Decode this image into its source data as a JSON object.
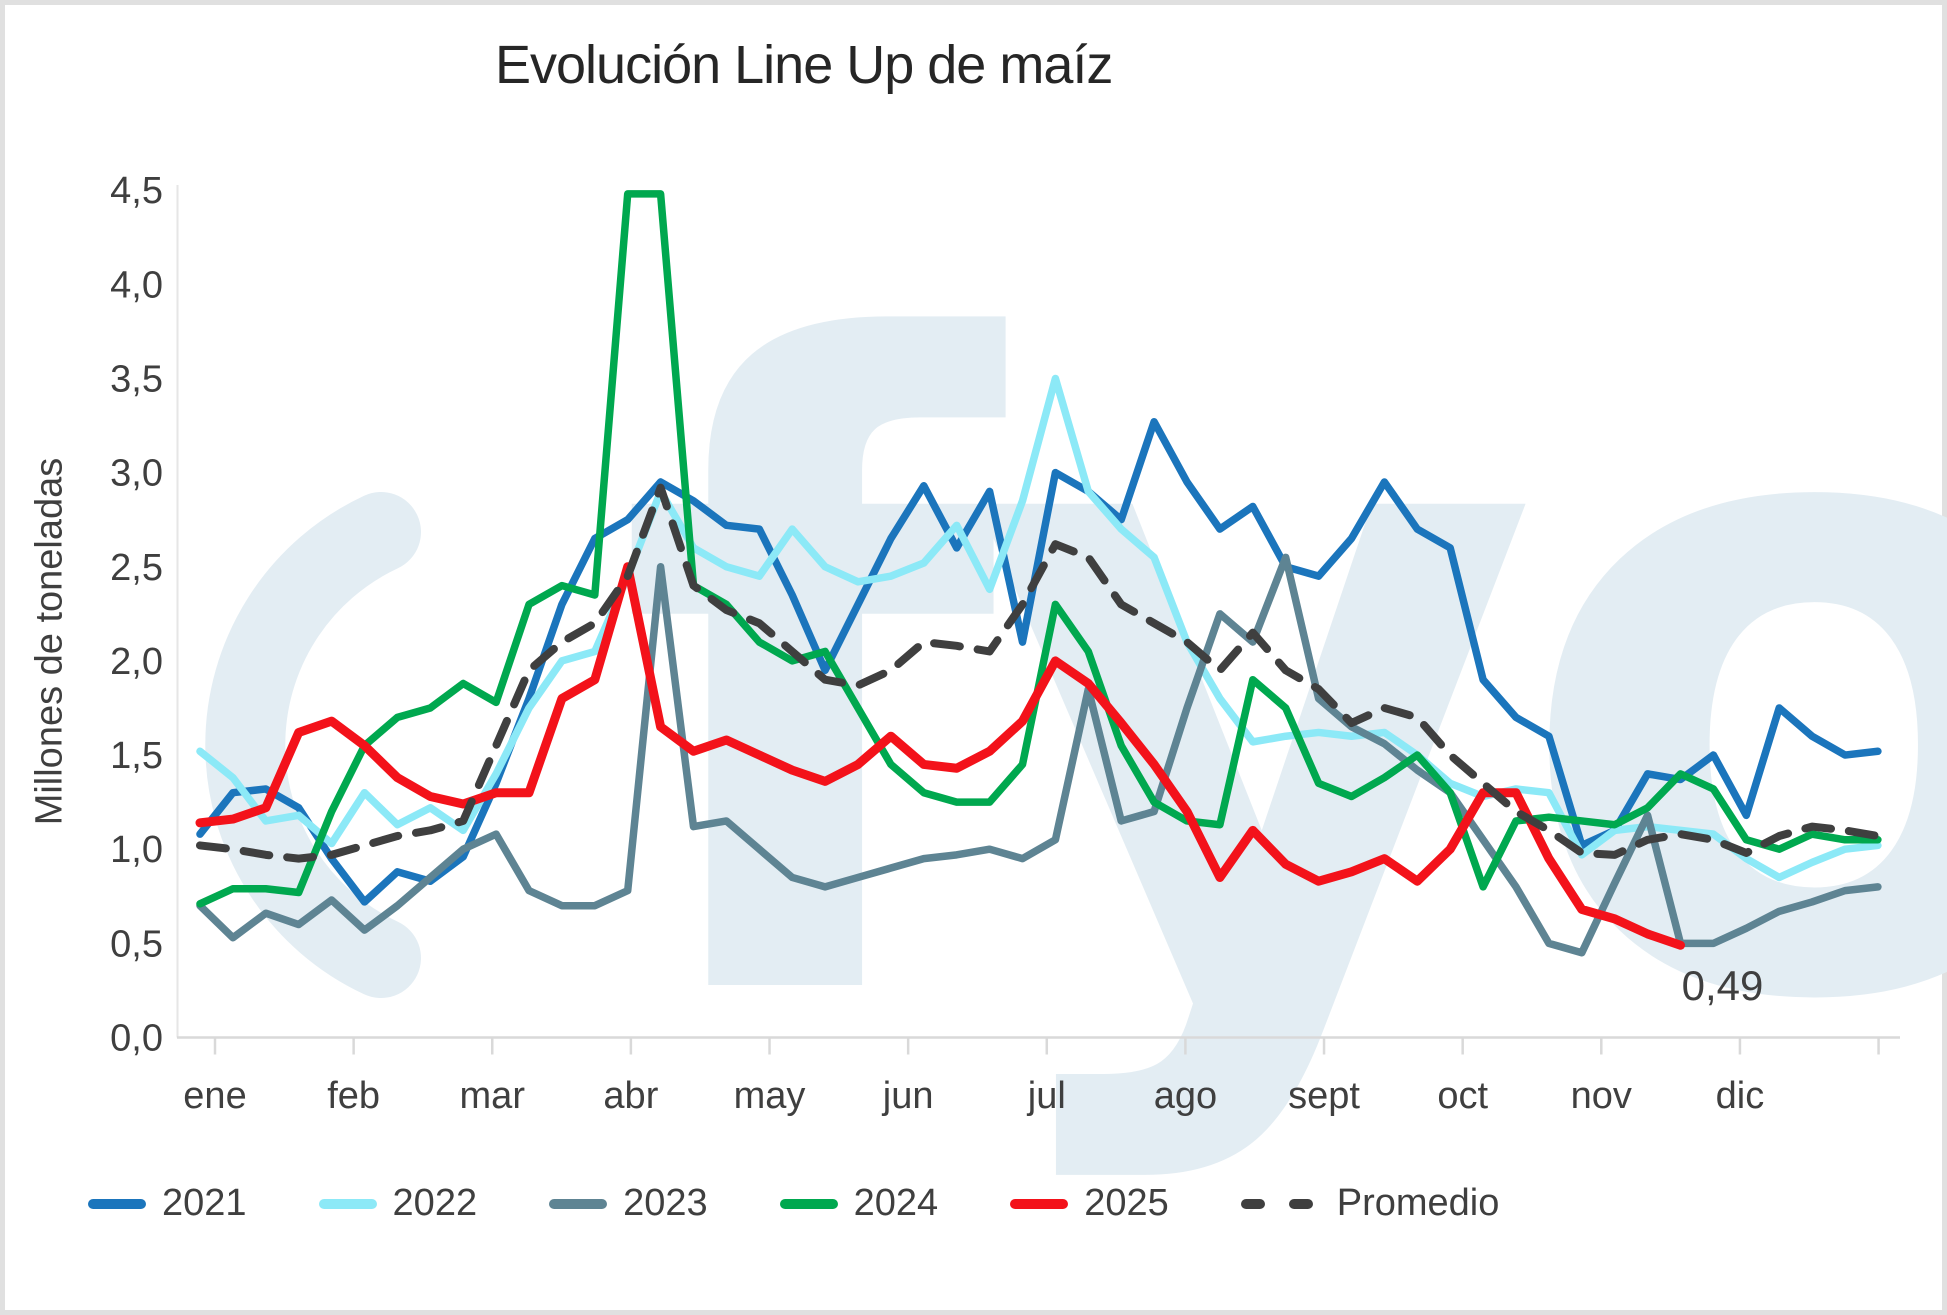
{
  "chart_data": {
    "type": "line",
    "title": "Evolución Line Up de maíz",
    "ylabel": "Millones de toneladas",
    "x_axis": {
      "unit": "week",
      "weeks": 52,
      "month_labels": [
        "ene",
        "feb",
        "mar",
        "abr",
        "may",
        "jun",
        "jul",
        "ago",
        "sept",
        "oct",
        "nov",
        "dic"
      ]
    },
    "y_axis": {
      "min": 0,
      "max": 4.5,
      "step": 0.5,
      "tick_labels": [
        "0,0",
        "0,5",
        "1,0",
        "1,5",
        "2,0",
        "2,5",
        "3,0",
        "3,5",
        "4,0",
        "4,5"
      ]
    },
    "grid": false,
    "legend_position": "bottom",
    "watermark_text": "fyo",
    "annotation": {
      "text": "0,49",
      "series": "2025",
      "week": 46,
      "value": 0.49
    },
    "series": [
      {
        "name": "2021",
        "color": "#1b75bc",
        "dashed": false,
        "width": 7.5,
        "values": [
          1.08,
          1.3,
          1.32,
          1.22,
          0.95,
          0.72,
          0.88,
          0.83,
          0.96,
          1.35,
          1.8,
          2.3,
          2.65,
          2.75,
          2.95,
          2.85,
          2.72,
          2.7,
          2.35,
          1.95,
          2.3,
          2.65,
          2.93,
          2.6,
          2.9,
          2.1,
          3.0,
          2.9,
          2.75,
          3.27,
          2.95,
          2.7,
          2.82,
          2.5,
          2.45,
          2.65,
          2.95,
          2.7,
          2.6,
          1.9,
          1.7,
          1.6,
          1.02,
          1.1,
          1.4,
          1.37,
          1.5,
          1.18,
          1.75,
          1.6,
          1.5,
          1.52
        ]
      },
      {
        "name": "2022",
        "color": "#8ce9f7",
        "dashed": false,
        "width": 7.5,
        "values": [
          1.52,
          1.38,
          1.15,
          1.18,
          1.03,
          1.3,
          1.13,
          1.22,
          1.1,
          1.4,
          1.75,
          2.0,
          2.05,
          2.45,
          2.9,
          2.6,
          2.5,
          2.45,
          2.7,
          2.5,
          2.42,
          2.45,
          2.52,
          2.72,
          2.38,
          2.85,
          3.5,
          2.9,
          2.7,
          2.55,
          2.1,
          1.8,
          1.57,
          1.6,
          1.62,
          1.6,
          1.62,
          1.5,
          1.35,
          1.28,
          1.32,
          1.3,
          0.97,
          1.1,
          1.12,
          1.1,
          1.08,
          0.95,
          0.85,
          0.93,
          1.0,
          1.02
        ]
      },
      {
        "name": "2023",
        "color": "#5e8493",
        "dashed": false,
        "width": 7.5,
        "values": [
          0.7,
          0.53,
          0.66,
          0.6,
          0.73,
          0.57,
          0.7,
          0.85,
          1.0,
          1.08,
          0.78,
          0.7,
          0.7,
          0.78,
          2.5,
          1.12,
          1.15,
          1.0,
          0.85,
          0.8,
          0.85,
          0.9,
          0.95,
          0.97,
          1.0,
          0.95,
          1.05,
          1.85,
          1.15,
          1.2,
          1.75,
          2.25,
          2.1,
          2.55,
          1.8,
          1.65,
          1.56,
          1.42,
          1.3,
          1.05,
          0.8,
          0.5,
          0.45,
          0.82,
          1.18,
          0.5,
          0.5,
          0.58,
          0.67,
          0.72,
          0.78,
          0.8
        ]
      },
      {
        "name": "2024",
        "color": "#00a84f",
        "dashed": false,
        "width": 7.5,
        "values": [
          0.71,
          0.79,
          0.79,
          0.77,
          1.2,
          1.55,
          1.7,
          1.75,
          1.88,
          1.78,
          2.3,
          2.4,
          2.35,
          4.48,
          4.48,
          2.4,
          2.3,
          2.1,
          2.0,
          2.05,
          1.75,
          1.45,
          1.3,
          1.25,
          1.25,
          1.45,
          2.3,
          2.05,
          1.55,
          1.25,
          1.15,
          1.13,
          1.9,
          1.75,
          1.35,
          1.28,
          1.38,
          1.5,
          1.3,
          0.8,
          1.15,
          1.17,
          1.15,
          1.13,
          1.22,
          1.4,
          1.32,
          1.05,
          1.0,
          1.08,
          1.05,
          1.05
        ]
      },
      {
        "name": "2025",
        "color": "#f3121a",
        "dashed": false,
        "width": 9,
        "values": [
          1.14,
          1.16,
          1.22,
          1.62,
          1.68,
          1.55,
          1.38,
          1.28,
          1.24,
          1.3,
          1.3,
          1.8,
          1.9,
          2.5,
          1.65,
          1.52,
          1.58,
          1.5,
          1.42,
          1.36,
          1.45,
          1.6,
          1.45,
          1.43,
          1.52,
          1.68,
          2.0,
          1.88,
          1.67,
          1.45,
          1.2,
          0.85,
          1.1,
          0.92,
          0.83,
          0.88,
          0.95,
          0.83,
          1.0,
          1.3,
          1.3,
          0.95,
          0.68,
          0.63,
          0.55,
          0.49
        ]
      },
      {
        "name": "Promedio",
        "color": "#3f3f3f",
        "dashed": true,
        "width": 8,
        "values": [
          1.02,
          1.0,
          0.97,
          0.95,
          0.97,
          1.02,
          1.07,
          1.1,
          1.15,
          1.55,
          1.95,
          2.1,
          2.2,
          2.45,
          2.92,
          2.4,
          2.27,
          2.2,
          2.05,
          1.9,
          1.87,
          1.95,
          2.1,
          2.08,
          2.05,
          2.3,
          2.62,
          2.55,
          2.3,
          2.2,
          2.1,
          1.95,
          2.15,
          1.95,
          1.85,
          1.67,
          1.75,
          1.7,
          1.5,
          1.35,
          1.2,
          1.1,
          0.98,
          0.97,
          1.05,
          1.08,
          1.05,
          0.98,
          1.07,
          1.12,
          1.1,
          1.07
        ]
      }
    ]
  },
  "colors": {
    "watermark": "#e3edf3",
    "axis": "#d9d9d9",
    "axis_faint": "#e6e6e6",
    "tick_text": "#3f3f3f",
    "title_text": "#262626",
    "border": "#e0e0e0",
    "background": "#ffffff"
  }
}
